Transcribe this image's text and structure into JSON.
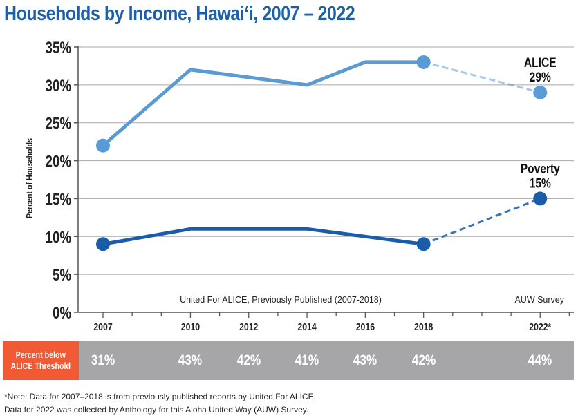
{
  "title": "Households by Income, Hawai‘i, 2007 – 2022",
  "chart_data": {
    "type": "line",
    "ylabel": "Percent of Households",
    "y_ticks": [
      "0%",
      "5%",
      "10%",
      "15%",
      "20%",
      "25%",
      "30%",
      "35%"
    ],
    "ylim": [
      0,
      35
    ],
    "x_tick_labels": [
      "2007",
      "2010",
      "2012",
      "2014",
      "2016",
      "2018",
      "2022*"
    ],
    "x_tick_years": [
      2007,
      2010,
      2012,
      2014,
      2016,
      2018,
      2022
    ],
    "grid": true,
    "source_labels": {
      "previous": "United For ALICE, Previously Published (2007-2018)",
      "survey": "AUW Survey"
    },
    "series": [
      {
        "name": "ALICE",
        "color": "#5b9bd5",
        "end_label": "29%",
        "points": [
          {
            "x": 2007,
            "y": 22
          },
          {
            "x": 2010,
            "y": 32
          },
          {
            "x": 2014,
            "y": 30
          },
          {
            "x": 2016,
            "y": 33
          },
          {
            "x": 2018,
            "y": 33
          }
        ],
        "dashed_points": [
          {
            "x": 2018,
            "y": 33
          },
          {
            "x": 2022,
            "y": 29
          }
        ]
      },
      {
        "name": "Poverty",
        "color": "#1a5ca8",
        "end_label": "15%",
        "points": [
          {
            "x": 2007,
            "y": 9
          },
          {
            "x": 2010,
            "y": 11
          },
          {
            "x": 2014,
            "y": 11
          },
          {
            "x": 2018,
            "y": 9
          }
        ],
        "dashed_points": [
          {
            "x": 2018,
            "y": 9
          },
          {
            "x": 2022,
            "y": 15
          }
        ]
      }
    ],
    "threshold_row": {
      "label_line1": "Percent below",
      "label_line2": "ALICE Threshold",
      "values": [
        {
          "x": 2007,
          "value": "31%"
        },
        {
          "x": 2010,
          "value": "43%"
        },
        {
          "x": 2012,
          "value": "42%"
        },
        {
          "x": 2014,
          "value": "41%"
        },
        {
          "x": 2016,
          "value": "43%"
        },
        {
          "x": 2018,
          "value": "42%"
        },
        {
          "x": 2022,
          "value": "44%"
        }
      ]
    }
  },
  "notes": [
    "*Note: Data for 2007–2018 is from previously published reports by United For ALICE.",
    "Data for 2022 was collected by Anthology for this Aloha United Way (AUW) Survey."
  ],
  "colors": {
    "title": "#1f5fa8",
    "threshold_label_bg": "#f05a34",
    "threshold_band_bg": "#a6a6a8"
  }
}
